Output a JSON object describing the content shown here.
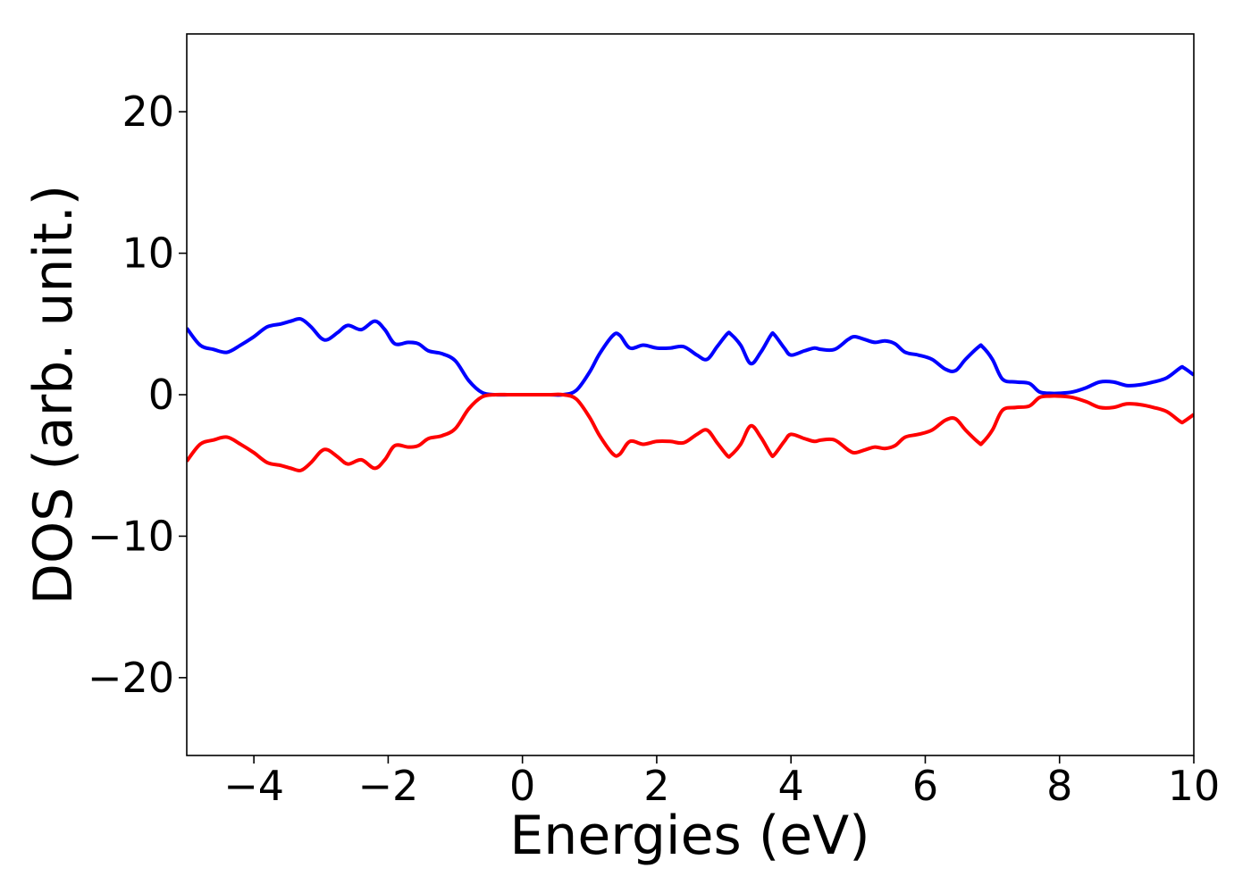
{
  "chart_data": {
    "type": "line",
    "title": "",
    "xlabel": "Energies (eV)",
    "ylabel": "DOS (arb. unit.)",
    "xlim": [
      -5,
      10
    ],
    "ylim": [
      -25.5,
      25.5
    ],
    "xticks": [
      -4,
      -2,
      0,
      2,
      4,
      6,
      8,
      10
    ],
    "xtick_labels": [
      "−4",
      "−2",
      "0",
      "2",
      "4",
      "6",
      "8",
      "10"
    ],
    "yticks": [
      -20,
      -10,
      0,
      10,
      20
    ],
    "ytick_labels": [
      "−20",
      "−10",
      "0",
      "10",
      "20"
    ],
    "grid": false,
    "legend": "none",
    "series": [
      {
        "color": "#0000ff",
        "x": [
          -5.0,
          -4.8,
          -4.6,
          -4.4,
          -4.2,
          -4.0,
          -3.8,
          -3.6,
          -3.45,
          -3.3,
          -3.15,
          -3.0,
          -2.9,
          -2.75,
          -2.6,
          -2.4,
          -2.2,
          -2.05,
          -1.9,
          -1.7,
          -1.55,
          -1.4,
          -1.2,
          -1.0,
          -0.8,
          -0.6,
          -0.4,
          -0.2,
          0.0,
          0.2,
          0.4,
          0.6,
          0.8,
          1.0,
          1.15,
          1.35,
          1.45,
          1.6,
          1.8,
          2.0,
          2.2,
          2.4,
          2.6,
          2.75,
          2.9,
          3.05,
          3.1,
          3.25,
          3.4,
          3.55,
          3.7,
          3.75,
          3.9,
          4.0,
          4.2,
          4.35,
          4.45,
          4.65,
          4.85,
          4.95,
          5.1,
          5.25,
          5.4,
          5.55,
          5.7,
          5.9,
          6.1,
          6.3,
          6.45,
          6.6,
          6.8,
          6.85,
          7.0,
          7.15,
          7.35,
          7.55,
          7.7,
          7.85,
          8.0,
          8.2,
          8.4,
          8.6,
          8.8,
          9.0,
          9.2,
          9.4,
          9.6,
          9.8,
          9.85,
          10.0
        ],
        "y": [
          4.7,
          3.5,
          3.2,
          3.0,
          3.5,
          4.1,
          4.8,
          5.0,
          5.2,
          5.35,
          4.8,
          4.0,
          3.9,
          4.4,
          4.9,
          4.6,
          5.2,
          4.6,
          3.6,
          3.7,
          3.6,
          3.1,
          2.9,
          2.4,
          1.0,
          0.15,
          0.0,
          0.0,
          0.0,
          0.0,
          0.0,
          0.0,
          0.3,
          1.6,
          2.9,
          4.2,
          4.2,
          3.3,
          3.5,
          3.3,
          3.3,
          3.4,
          2.8,
          2.5,
          3.4,
          4.3,
          4.3,
          3.5,
          2.2,
          3.0,
          4.2,
          4.25,
          3.3,
          2.8,
          3.1,
          3.3,
          3.2,
          3.2,
          3.9,
          4.1,
          3.9,
          3.7,
          3.8,
          3.6,
          3.0,
          2.8,
          2.5,
          1.8,
          1.7,
          2.5,
          3.4,
          3.4,
          2.5,
          1.1,
          0.9,
          0.8,
          0.2,
          0.1,
          0.1,
          0.2,
          0.5,
          0.9,
          0.9,
          0.65,
          0.7,
          0.9,
          1.2,
          1.9,
          1.9,
          1.4
        ]
      },
      {
        "color": "#ff0000",
        "x": [
          -5.0,
          -4.8,
          -4.6,
          -4.4,
          -4.2,
          -4.0,
          -3.8,
          -3.6,
          -3.45,
          -3.3,
          -3.15,
          -3.0,
          -2.9,
          -2.75,
          -2.6,
          -2.4,
          -2.2,
          -2.05,
          -1.9,
          -1.7,
          -1.55,
          -1.4,
          -1.2,
          -1.0,
          -0.8,
          -0.6,
          -0.4,
          -0.2,
          0.0,
          0.2,
          0.4,
          0.6,
          0.8,
          1.0,
          1.15,
          1.35,
          1.45,
          1.6,
          1.8,
          2.0,
          2.2,
          2.4,
          2.6,
          2.75,
          2.9,
          3.05,
          3.1,
          3.25,
          3.4,
          3.55,
          3.7,
          3.75,
          3.9,
          4.0,
          4.2,
          4.35,
          4.45,
          4.65,
          4.85,
          4.95,
          5.1,
          5.25,
          5.4,
          5.55,
          5.7,
          5.9,
          6.1,
          6.3,
          6.45,
          6.6,
          6.8,
          6.85,
          7.0,
          7.15,
          7.35,
          7.55,
          7.7,
          7.85,
          8.0,
          8.2,
          8.4,
          8.6,
          8.8,
          9.0,
          9.2,
          9.4,
          9.6,
          9.8,
          9.85,
          10.0
        ],
        "y": [
          -4.7,
          -3.5,
          -3.2,
          -3.0,
          -3.5,
          -4.1,
          -4.8,
          -5.0,
          -5.2,
          -5.35,
          -4.8,
          -4.0,
          -3.9,
          -4.4,
          -4.9,
          -4.6,
          -5.2,
          -4.6,
          -3.6,
          -3.7,
          -3.6,
          -3.1,
          -2.9,
          -2.4,
          -1.0,
          -0.15,
          0.0,
          0.0,
          0.0,
          0.0,
          0.0,
          0.0,
          -0.3,
          -1.6,
          -2.9,
          -4.2,
          -4.2,
          -3.3,
          -3.5,
          -3.3,
          -3.3,
          -3.4,
          -2.8,
          -2.5,
          -3.4,
          -4.3,
          -4.3,
          -3.5,
          -2.2,
          -3.0,
          -4.2,
          -4.25,
          -3.3,
          -2.8,
          -3.1,
          -3.3,
          -3.2,
          -3.2,
          -3.9,
          -4.1,
          -3.9,
          -3.7,
          -3.8,
          -3.6,
          -3.0,
          -2.8,
          -2.5,
          -1.8,
          -1.7,
          -2.5,
          -3.4,
          -3.4,
          -2.5,
          -1.1,
          -0.9,
          -0.8,
          -0.2,
          -0.1,
          -0.1,
          -0.2,
          -0.5,
          -0.9,
          -0.9,
          -0.65,
          -0.7,
          -0.9,
          -1.2,
          -1.9,
          -1.9,
          -1.4
        ]
      }
    ]
  }
}
